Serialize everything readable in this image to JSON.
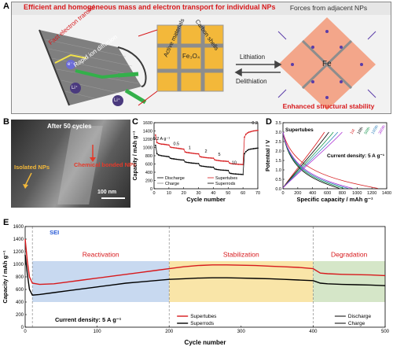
{
  "panel_a": {
    "label": "A",
    "banner": "Efficient and homogeneous mass and electron transport for individual NPs",
    "tube_text_1": "Fast electron transfer",
    "tube_text_2": "Rapid ion diffusion",
    "carbon_shells": "Carbon shells",
    "active_materials": "Active materials",
    "fe3o4": "Fe₃O₄",
    "lithiation": "Lithiation",
    "delithiation": "Delithiation",
    "forces": "Forces from adjacent NPs",
    "fe": "Fe",
    "stability": "Enhanced structural stability",
    "ion_symbol": "Li⁺",
    "electron_symbol": "e⁻"
  },
  "panel_b": {
    "label": "B",
    "after": "After 50 cycles",
    "isolated": "Isolated NPs",
    "chemical": "Chemical bonded NPs",
    "scale": "100 nm"
  },
  "colors": {
    "red": "#d7191c",
    "black": "#000000",
    "orange_accent": "#d06a15",
    "blue_bg": "#c8d9f0",
    "yellow_bg": "#f9e5a8",
    "green_bg": "#d5e6c8",
    "banner_bg": "#e6e6e6"
  },
  "chart_data": [
    {
      "type": "line",
      "panel": "C",
      "xlabel": "Cycle number",
      "ylabel": "Capacity / mAh g⁻¹",
      "xlim": [
        0,
        70
      ],
      "ylim": [
        0,
        1600
      ],
      "xticks": [
        0,
        10,
        20,
        30,
        40,
        50,
        60,
        70
      ],
      "yticks": [
        0,
        200,
        400,
        600,
        800,
        1000,
        1200,
        1400,
        1600
      ],
      "rate_labels": [
        {
          "text": "0.2 A g⁻¹",
          "x": 5,
          "y": 1180
        },
        {
          "text": "0.5",
          "x": 15,
          "y": 1060
        },
        {
          "text": "1",
          "x": 24,
          "y": 960
        },
        {
          "text": "2",
          "x": 35,
          "y": 880
        },
        {
          "text": "5",
          "x": 44,
          "y": 800
        },
        {
          "text": "10",
          "x": 54,
          "y": 600
        },
        {
          "text": "0.2",
          "x": 68,
          "y": 1560
        }
      ],
      "legend": [
        "Discharge",
        "Charge",
        "Supertubes",
        "Superrods"
      ],
      "series": [
        {
          "name": "Supertubes",
          "x": [
            1,
            2,
            3,
            4,
            5,
            6,
            7,
            8,
            9,
            10,
            11,
            12,
            13,
            14,
            15,
            16,
            17,
            18,
            19,
            20,
            21,
            22,
            23,
            24,
            25,
            26,
            27,
            28,
            29,
            30,
            31,
            32,
            33,
            34,
            35,
            36,
            37,
            38,
            39,
            40,
            41,
            42,
            43,
            44,
            45,
            46,
            47,
            48,
            49,
            50,
            51,
            52,
            53,
            54,
            55,
            56,
            57,
            58,
            59,
            60,
            61,
            62,
            63,
            64,
            65,
            66,
            67,
            68,
            69,
            70
          ],
          "values": [
            1300,
            1120,
            1100,
            1090,
            1080,
            1080,
            1075,
            1070,
            1065,
            1060,
            1010,
            1000,
            995,
            990,
            985,
            980,
            975,
            970,
            965,
            960,
            890,
            880,
            875,
            870,
            865,
            860,
            855,
            850,
            848,
            845,
            780,
            770,
            765,
            760,
            755,
            750,
            748,
            745,
            742,
            740,
            700,
            690,
            685,
            680,
            675,
            672,
            670,
            668,
            665,
            662,
            620,
            610,
            605,
            600,
            598,
            595,
            592,
            590,
            588,
            585,
            1250,
            1320,
            1350,
            1370,
            1380,
            1390,
            1400,
            1405,
            1410,
            1415
          ]
        },
        {
          "name": "Superrods",
          "x": [
            1,
            2,
            3,
            4,
            5,
            6,
            7,
            8,
            9,
            10,
            11,
            12,
            13,
            14,
            15,
            16,
            17,
            18,
            19,
            20,
            21,
            22,
            23,
            24,
            25,
            26,
            27,
            28,
            29,
            30,
            31,
            32,
            33,
            34,
            35,
            36,
            37,
            38,
            39,
            40,
            41,
            42,
            43,
            44,
            45,
            46,
            47,
            48,
            49,
            50,
            51,
            52,
            53,
            54,
            55,
            56,
            57,
            58,
            59,
            60,
            61,
            62,
            63,
            64,
            65,
            66,
            67,
            68,
            69,
            70
          ],
          "values": [
            1050,
            850,
            820,
            810,
            800,
            795,
            790,
            785,
            780,
            775,
            740,
            730,
            725,
            720,
            715,
            710,
            705,
            700,
            698,
            695,
            650,
            640,
            635,
            630,
            625,
            620,
            618,
            615,
            612,
            610,
            560,
            550,
            545,
            540,
            535,
            530,
            528,
            525,
            522,
            520,
            480,
            470,
            465,
            460,
            455,
            452,
            450,
            448,
            445,
            442,
            380,
            370,
            365,
            360,
            358,
            355,
            352,
            350,
            348,
            345,
            850,
            900,
            930,
            950,
            960,
            965,
            970,
            975,
            980,
            985
          ]
        }
      ]
    },
    {
      "type": "line",
      "panel": "D",
      "title": "Supertubes",
      "xlabel": "Specific capacity / mAh g⁻¹",
      "ylabel": "Potential / V",
      "xlim": [
        0,
        1400
      ],
      "ylim": [
        0,
        3.5
      ],
      "xticks": [
        0,
        200,
        400,
        600,
        800,
        1000,
        1200,
        1400
      ],
      "yticks": [
        0.0,
        0.5,
        1.0,
        1.5,
        2.0,
        2.5,
        3.0,
        3.5
      ],
      "annotation": "Current density: 5 A g⁻¹",
      "cycle_labels": [
        "1st",
        "10th",
        "50th",
        "100th",
        "300th"
      ],
      "series": [
        {
          "name": "1st",
          "charge_end": 560,
          "discharge_end": 1280
        },
        {
          "name": "10th",
          "charge_end": 620,
          "discharge_end": 760
        },
        {
          "name": "50th",
          "charge_end": 680,
          "discharge_end": 820
        },
        {
          "name": "100th",
          "charge_end": 740,
          "discharge_end": 880
        },
        {
          "name": "300th",
          "charge_end": 800,
          "discharge_end": 940
        }
      ]
    },
    {
      "type": "line",
      "panel": "E",
      "xlabel": "Cycle number",
      "ylabel": "Capacity / mAh g⁻¹",
      "xlim": [
        0,
        500
      ],
      "ylim": [
        0,
        1600
      ],
      "xticks": [
        0,
        100,
        200,
        300,
        400,
        500
      ],
      "yticks": [
        0,
        200,
        400,
        600,
        800,
        1000,
        1200,
        1400,
        1600
      ],
      "regions": [
        {
          "text": "Reactivation",
          "from": 10,
          "to": 200
        },
        {
          "text": "Stabilization",
          "from": 200,
          "to": 400
        },
        {
          "text": "Degradation",
          "from": 400,
          "to": 500
        }
      ],
      "sei": "SEI",
      "annotation": "Current density: 5 A g⁻¹",
      "legend": [
        "Supertubes",
        "Superrods",
        "Discharge",
        "Charge"
      ],
      "series": [
        {
          "name": "Supertubes",
          "x": [
            0,
            3,
            6,
            10,
            20,
            40,
            60,
            80,
            100,
            120,
            140,
            160,
            180,
            200,
            220,
            240,
            260,
            280,
            300,
            320,
            340,
            360,
            380,
            400,
            410,
            420,
            440,
            460,
            480,
            500
          ],
          "values": [
            1400,
            1050,
            800,
            700,
            680,
            690,
            720,
            750,
            780,
            810,
            840,
            870,
            900,
            930,
            960,
            980,
            990,
            990,
            985,
            980,
            970,
            960,
            950,
            930,
            860,
            850,
            840,
            835,
            830,
            820
          ]
        },
        {
          "name": "Superrods",
          "x": [
            0,
            3,
            6,
            10,
            20,
            40,
            60,
            80,
            100,
            120,
            140,
            160,
            180,
            200,
            220,
            240,
            260,
            280,
            300,
            320,
            340,
            360,
            380,
            400,
            410,
            420,
            440,
            460,
            480,
            500
          ],
          "values": [
            1150,
            850,
            600,
            510,
            520,
            550,
            580,
            610,
            640,
            670,
            700,
            720,
            740,
            760,
            770,
            780,
            785,
            785,
            780,
            775,
            770,
            760,
            750,
            740,
            700,
            690,
            680,
            675,
            670,
            660
          ]
        }
      ]
    }
  ]
}
